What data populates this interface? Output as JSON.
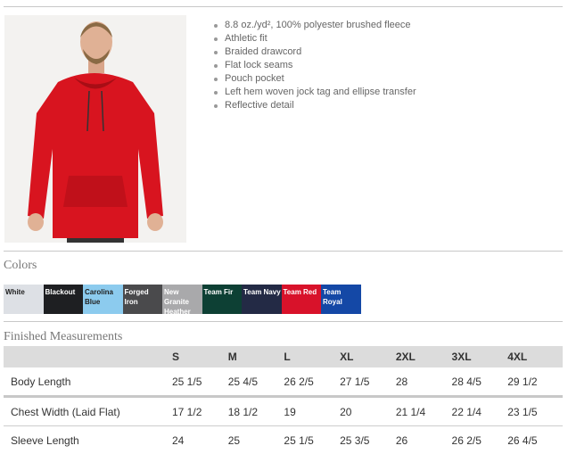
{
  "product": {
    "photo_alt": "Man wearing red hoodie",
    "features": [
      "8.8 oz./yd², 100% polyester brushed fleece",
      "Athletic fit",
      "Braided drawcord",
      "Flat lock seams",
      "Pouch pocket",
      "Left hem woven jock tag and ellipse transfer",
      "Reflective detail"
    ]
  },
  "colors": {
    "heading": "Colors",
    "swatches": [
      {
        "name": "White",
        "hex": "#dde0e5",
        "text": "#222"
      },
      {
        "name": "Blackout",
        "hex": "#1e1f22",
        "text": "#fff"
      },
      {
        "name": "Carolina Blue",
        "hex": "#8ccbee",
        "text": "#222"
      },
      {
        "name": "Forged Iron",
        "hex": "#4a4a4c",
        "text": "#fff"
      },
      {
        "name": "New Granite Heather",
        "hex": "#a9a9ab",
        "text": "#fff"
      },
      {
        "name": "Team Fir",
        "hex": "#0d4034",
        "text": "#fff"
      },
      {
        "name": "Team Navy",
        "hex": "#232a45",
        "text": "#fff"
      },
      {
        "name": "Team Red",
        "hex": "#d8122a",
        "text": "#fff"
      },
      {
        "name": "Team Royal",
        "hex": "#1448a6",
        "text": "#fff"
      }
    ]
  },
  "measurements": {
    "heading": "Finished Measurements",
    "sizes": [
      "S",
      "M",
      "L",
      "XL",
      "2XL",
      "3XL",
      "4XL"
    ],
    "rows": [
      {
        "label": "Body Length",
        "values": [
          "25 1/5",
          "25 4/5",
          "26 2/5",
          "27 1/5",
          "28",
          "28 4/5",
          "29 1/2"
        ]
      },
      {
        "label": "Chest Width (Laid Flat)",
        "values": [
          "17 1/2",
          "18 1/2",
          "19",
          "20",
          "21 1/4",
          "22 1/4",
          "23 1/5"
        ]
      },
      {
        "label": "Sleeve Length",
        "values": [
          "24",
          "25",
          "25 1/5",
          "25 3/5",
          "26",
          "26 2/5",
          "26 4/5"
        ]
      }
    ]
  }
}
